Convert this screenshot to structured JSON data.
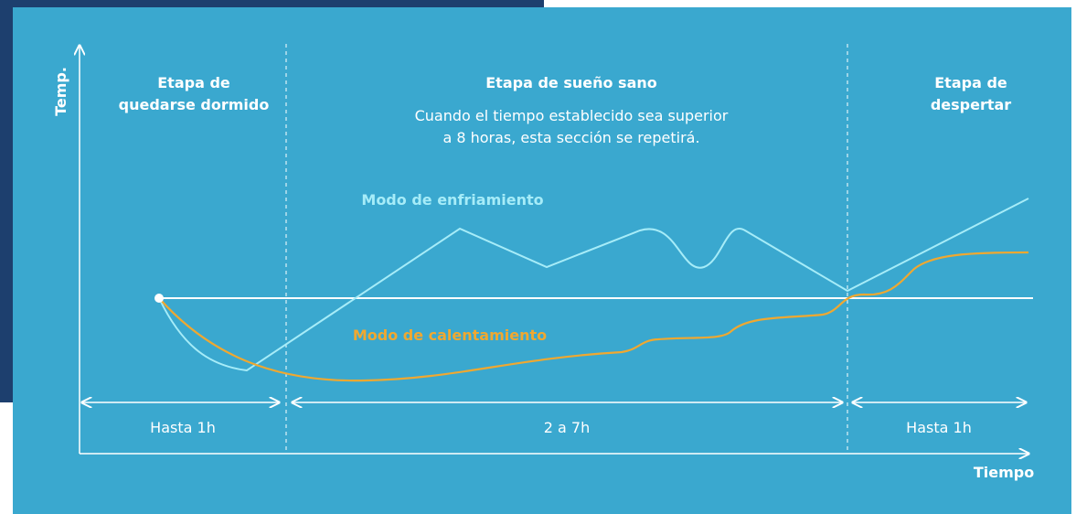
{
  "axes": {
    "y_label": "Temp.",
    "x_label": "Tiempo"
  },
  "stages": [
    {
      "title": [
        "Etapa de",
        "quedarse dormido"
      ],
      "duration": "Hasta 1h"
    },
    {
      "title": [
        "Etapa de sueño sano"
      ],
      "note": [
        "Cuando el tiempo establecido sea superior",
        "a 8 horas, esta sección se repetirá."
      ],
      "duration": "2 a 7h"
    },
    {
      "title": [
        "Etapa de",
        "despertar"
      ],
      "duration": "Hasta 1h"
    }
  ],
  "curves": {
    "cooling": "Modo de enfriamiento",
    "warming": "Modo de calentamiento"
  }
}
